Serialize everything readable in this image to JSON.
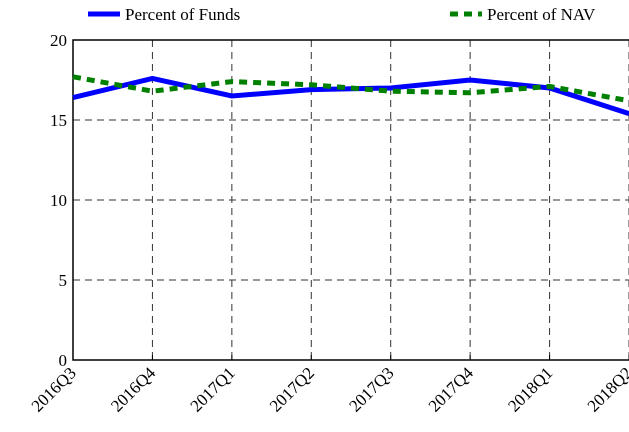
{
  "chart_data": {
    "type": "line",
    "categories": [
      "2016Q3",
      "2016Q4",
      "2017Q1",
      "2017Q2",
      "2017Q3",
      "2017Q4",
      "2018Q1",
      "2018Q2"
    ],
    "series": [
      {
        "name": "Percent of Funds",
        "color": "#0000ff",
        "style": "solid",
        "values": [
          16.4,
          17.6,
          16.5,
          16.9,
          17.0,
          17.5,
          17.0,
          15.4
        ]
      },
      {
        "name": "Percent of NAV",
        "color": "#008000",
        "style": "dashed",
        "values": [
          17.7,
          16.8,
          17.4,
          17.2,
          16.8,
          16.7,
          17.1,
          16.2
        ]
      }
    ],
    "ylim": [
      0,
      20
    ],
    "yticks": [
      0,
      5,
      10,
      15,
      20
    ],
    "grid": true,
    "legend": "top"
  }
}
